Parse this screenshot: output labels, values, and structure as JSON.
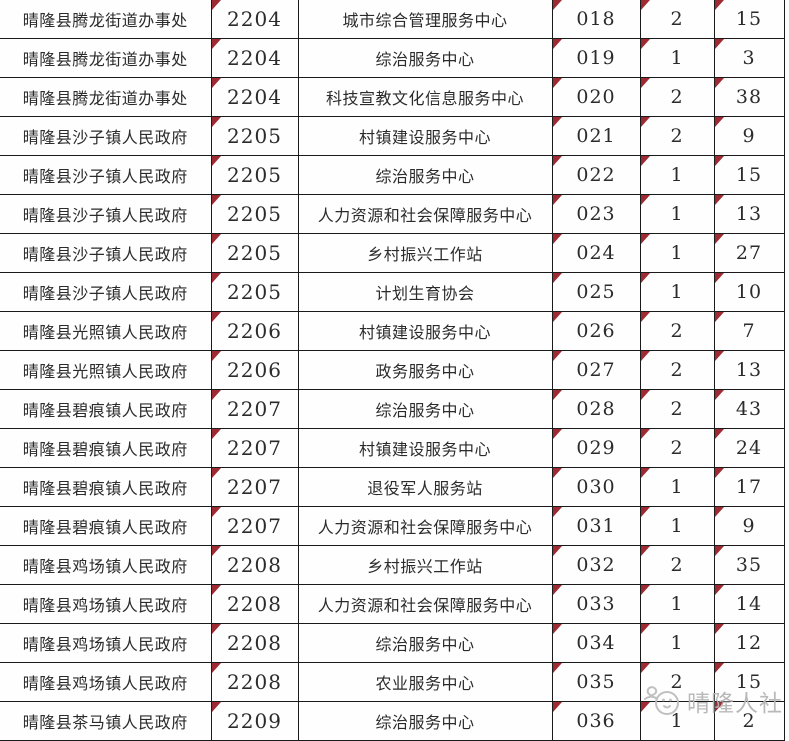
{
  "watermark": {
    "text": "晴隆人社",
    "logo": "mascot-logo"
  },
  "colors": {
    "background": "#ffffff",
    "border": "#1a1a1a",
    "text": "#2b2b2b",
    "marker": "#9e2b33",
    "watermark": "#b6b6b6"
  },
  "table": {
    "marked_columns": [
      1,
      3,
      4,
      5
    ],
    "rows": [
      [
        "晴隆县腾龙街道办事处",
        "2204",
        "城市综合管理服务中心",
        "018",
        "2",
        "15"
      ],
      [
        "晴隆县腾龙街道办事处",
        "2204",
        "综治服务中心",
        "019",
        "1",
        "3"
      ],
      [
        "晴隆县腾龙街道办事处",
        "2204",
        "科技宣教文化信息服务中心",
        "020",
        "2",
        "38"
      ],
      [
        "晴隆县沙子镇人民政府",
        "2205",
        "村镇建设服务中心",
        "021",
        "2",
        "9"
      ],
      [
        "晴隆县沙子镇人民政府",
        "2205",
        "综治服务中心",
        "022",
        "1",
        "15"
      ],
      [
        "晴隆县沙子镇人民政府",
        "2205",
        "人力资源和社会保障服务中心",
        "023",
        "1",
        "13"
      ],
      [
        "晴隆县沙子镇人民政府",
        "2205",
        "乡村振兴工作站",
        "024",
        "1",
        "27"
      ],
      [
        "晴隆县沙子镇人民政府",
        "2205",
        "计划生育协会",
        "025",
        "1",
        "10"
      ],
      [
        "晴隆县光照镇人民政府",
        "2206",
        "村镇建设服务中心",
        "026",
        "2",
        "7"
      ],
      [
        "晴隆县光照镇人民政府",
        "2206",
        "政务服务中心",
        "027",
        "2",
        "13"
      ],
      [
        "晴隆县碧痕镇人民政府",
        "2207",
        "综治服务中心",
        "028",
        "2",
        "43"
      ],
      [
        "晴隆县碧痕镇人民政府",
        "2207",
        "村镇建设服务中心",
        "029",
        "2",
        "24"
      ],
      [
        "晴隆县碧痕镇人民政府",
        "2207",
        "退役军人服务站",
        "030",
        "1",
        "17"
      ],
      [
        "晴隆县碧痕镇人民政府",
        "2207",
        "人力资源和社会保障服务中心",
        "031",
        "1",
        "9"
      ],
      [
        "晴隆县鸡场镇人民政府",
        "2208",
        "乡村振兴工作站",
        "032",
        "2",
        "35"
      ],
      [
        "晴隆县鸡场镇人民政府",
        "2208",
        "人力资源和社会保障服务中心",
        "033",
        "1",
        "14"
      ],
      [
        "晴隆县鸡场镇人民政府",
        "2208",
        "综治服务中心",
        "034",
        "1",
        "12"
      ],
      [
        "晴隆县鸡场镇人民政府",
        "2208",
        "农业服务中心",
        "035",
        "2",
        "15"
      ],
      [
        "晴隆县茶马镇人民政府",
        "2209",
        "综治服务中心",
        "036",
        "1",
        "2"
      ]
    ]
  }
}
